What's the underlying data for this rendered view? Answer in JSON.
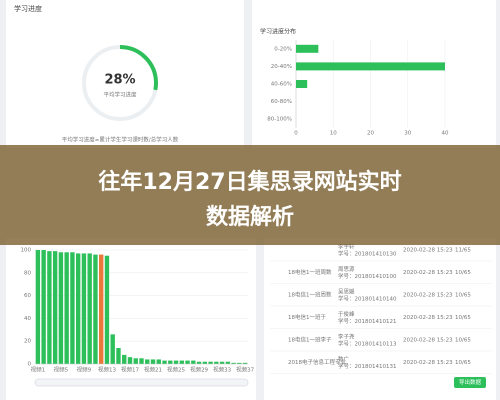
{
  "header": {
    "left_title": "学习进度",
    "right_title": "学习进度分布"
  },
  "progress": {
    "value": 28,
    "label": "28%",
    "caption": "平均学习进度",
    "note": "平均学习进度=累计学生学习课时数/总学习人数"
  },
  "banner": {
    "lines": [
      "往年12月27日集思录网站实时",
      "数据解析"
    ]
  },
  "chart_data": [
    {
      "type": "hbar",
      "categories": [
        "0-20%",
        "20-40%",
        "40-60%",
        "60-80%",
        "80-100%"
      ],
      "values": [
        6,
        40,
        3,
        0,
        0
      ],
      "color": "#2dbf5a",
      "xlim": [
        0,
        40
      ],
      "xticks": [
        0,
        10,
        20,
        30,
        40
      ],
      "grid": true
    },
    {
      "type": "bar",
      "categories": [
        "视频1",
        null,
        null,
        null,
        "视频5",
        null,
        null,
        null,
        "视频9",
        null,
        null,
        null,
        "视频13",
        null,
        null,
        null,
        "视频17",
        null,
        null,
        null,
        "视频21",
        null,
        null,
        null,
        "视频25",
        null,
        null,
        null,
        "视频29",
        null,
        null,
        null,
        "视频33",
        null,
        null,
        null,
        "视频37"
      ],
      "values": [
        100,
        100,
        99,
        99,
        98,
        98,
        98,
        97,
        97,
        97,
        96,
        96,
        95,
        26,
        14,
        8,
        6,
        5,
        5,
        4,
        4,
        4,
        3,
        3,
        3,
        3,
        3,
        3,
        2,
        2,
        2,
        2,
        2,
        2,
        1,
        1,
        1
      ],
      "color": "#2dbf5a",
      "highlight": {
        "index": 11,
        "color": "#e8793a"
      },
      "ylim": [
        0,
        100
      ],
      "yticks": [
        0,
        20,
        40,
        60,
        80,
        100
      ],
      "grid": true
    }
  ],
  "table": {
    "rows": [
      [
        "",
        "李宇轩",
        "学号：201801410130",
        "2020-02-28 15:23",
        "11/65"
      ],
      [
        "18电信1一班周数",
        "周思源",
        "学号：201801410100",
        "2020-02-28 15:23",
        "10/65"
      ],
      [
        "18电信1一班周数",
        "吴思媛",
        "学号：201801410140",
        "2020-02-28 15:23",
        "10/65"
      ],
      [
        "18电信1一班于",
        "于俊峰",
        "学号：201801410121",
        "2020-02-28 15:23",
        "10/65"
      ],
      [
        "18电信1一班李子",
        "李子尧",
        "学号：201801410113",
        "2020-02-28 15:23",
        "10/65"
      ],
      [
        "2018电子信息工程专业",
        "数广",
        "学号：201801410131",
        "2020-02-28 15:23",
        "10/65"
      ]
    ]
  },
  "button": "导出数据"
}
